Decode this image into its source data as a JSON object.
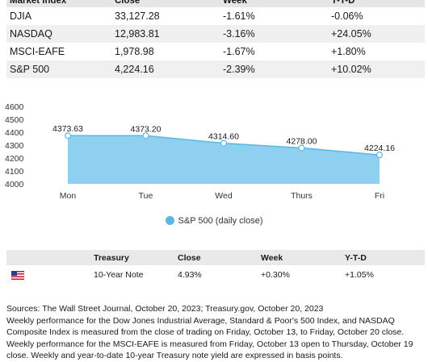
{
  "market_table": {
    "headers": [
      "Market Index",
      "Close",
      "Week",
      "Y-T-D"
    ],
    "rows": [
      [
        "DJIA",
        "33,127.28",
        "-1.61%",
        "-0.06%"
      ],
      [
        "NASDAQ",
        "12,983.81",
        "-3.16%",
        "+24.05%"
      ],
      [
        "MSCI-EAFE",
        "1,978.98",
        "-1.67%",
        "+1.80%"
      ],
      [
        "S&P 500",
        "4,224.16",
        "-2.39%",
        "+10.02%"
      ]
    ]
  },
  "chart_data": {
    "type": "area",
    "categories": [
      "Mon",
      "Tue",
      "Wed",
      "Thurs",
      "Fri"
    ],
    "series": [
      {
        "name": "S&P 500 (daily close)",
        "values": [
          4373.63,
          4373.2,
          4314.6,
          4278.0,
          4224.16
        ]
      }
    ],
    "data_labels": [
      "4373.63",
      "4373.20",
      "4314.60",
      "4278.00",
      "4224.16"
    ],
    "y_ticks": [
      4000,
      4100,
      4200,
      4300,
      4400,
      4500,
      4600
    ],
    "ylim": [
      4000,
      4600
    ],
    "title": "",
    "xlabel": "",
    "ylabel": "",
    "legend_position": "bottom",
    "grid": false,
    "fill_color": "#8fd0f0",
    "line_color": "#5ab8e3"
  },
  "legend": {
    "label": "S&P 500 (daily close)"
  },
  "treasury_table": {
    "headers": [
      "",
      "Treasury",
      "Close",
      "Week",
      "Y-T-D"
    ],
    "row": {
      "flag_icon": "us-flag-icon",
      "name": "10-Year Note",
      "close": "4.93%",
      "week": "+0.30%",
      "ytd": "+1.05%"
    }
  },
  "sources": [
    "Sources: The Wall Street Journal, October 20, 2023; Treasury.gov, October 20, 2023",
    "Weekly performance for the Dow Jones Industrial Average, Standard & Poor's 500 Index, and NASDAQ Composite Index is measured from the close of trading on Friday, October 13, to Friday, October 20 close. Weekly performance for the MSCI-EAFE is measured from Friday, October 13 open to Thursday, October 19 close. Weekly and year-to-date 10-year Treasury note yield are expressed in basis points."
  ]
}
